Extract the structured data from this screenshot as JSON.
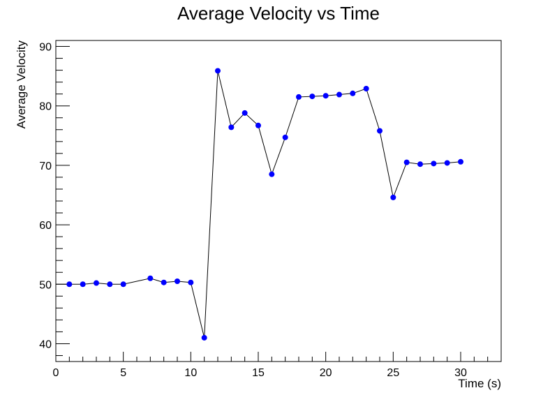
{
  "chart_data": {
    "type": "line",
    "title": "Average Velocity vs Time",
    "xlabel": "Time (s)",
    "ylabel": "Average Velocity",
    "xlim": [
      0,
      33
    ],
    "ylim": [
      37,
      91
    ],
    "x_ticks": [
      0,
      5,
      10,
      15,
      20,
      25,
      30
    ],
    "y_ticks": [
      40,
      50,
      60,
      70,
      80,
      90
    ],
    "grid": false,
    "legend": "none",
    "series": [
      {
        "color": "#0000ff",
        "line_color": "#000000",
        "points": [
          {
            "x": 0,
            "y": 50.0
          },
          {
            "x": 1,
            "y": 50.0
          },
          {
            "x": 2,
            "y": 50.0
          },
          {
            "x": 3,
            "y": 50.2
          },
          {
            "x": 4,
            "y": 50.0
          },
          {
            "x": 5,
            "y": 50.0
          },
          {
            "x": 7,
            "y": 51.0
          },
          {
            "x": 8,
            "y": 50.3
          },
          {
            "x": 9,
            "y": 50.5
          },
          {
            "x": 10,
            "y": 50.3
          },
          {
            "x": 11,
            "y": 41.0
          },
          {
            "x": 12,
            "y": 85.9
          },
          {
            "x": 13,
            "y": 76.4
          },
          {
            "x": 14,
            "y": 78.8
          },
          {
            "x": 15,
            "y": 76.7
          },
          {
            "x": 16,
            "y": 68.5
          },
          {
            "x": 17,
            "y": 74.7
          },
          {
            "x": 18,
            "y": 81.5
          },
          {
            "x": 19,
            "y": 81.6
          },
          {
            "x": 20,
            "y": 81.7
          },
          {
            "x": 21,
            "y": 81.9
          },
          {
            "x": 22,
            "y": 82.1
          },
          {
            "x": 23,
            "y": 82.9
          },
          {
            "x": 24,
            "y": 75.8
          },
          {
            "x": 25,
            "y": 64.6
          },
          {
            "x": 26,
            "y": 70.5
          },
          {
            "x": 27,
            "y": 70.2
          },
          {
            "x": 28,
            "y": 70.3
          },
          {
            "x": 29,
            "y": 70.4
          },
          {
            "x": 30,
            "y": 70.6
          }
        ],
        "markers_hidden_at_x": [
          0
        ]
      }
    ]
  }
}
